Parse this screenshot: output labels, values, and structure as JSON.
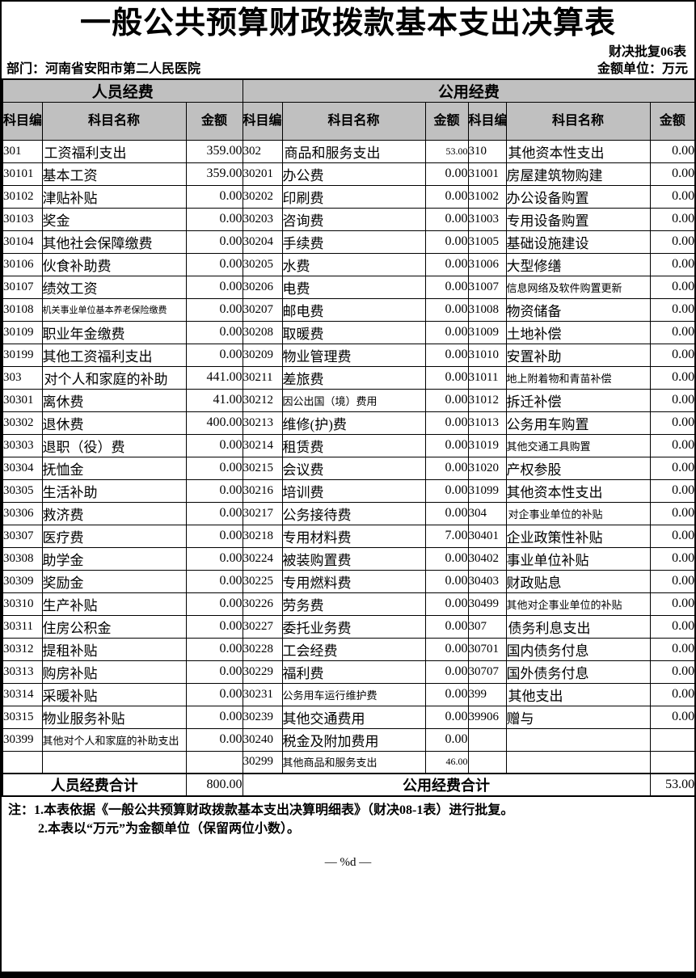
{
  "page": {
    "title": "一般公共预算财政拨款基本支出决算表",
    "form_code": "财决批复06表",
    "department": "部门：河南省安阳市第二人民医院",
    "unit": "金额单位：万元",
    "page_marker": "— %d —"
  },
  "table": {
    "group_headers": [
      "人员经费",
      "公用经费"
    ],
    "col_headers": {
      "code": "科目编码",
      "name": "科目名称",
      "amount": "金额"
    },
    "totals": {
      "personnel_label": "人员经费合计",
      "personnel_amount": "800.00",
      "public_label": "公用经费合计",
      "public_amount": "53.00"
    },
    "rows": [
      [
        {
          "code": "301",
          "name": "工资福利支出",
          "amount": "359.00",
          "top": true
        },
        {
          "code": "302",
          "name": "商品和服务支出",
          "amount": "53.00",
          "top": true,
          "asm": true
        },
        {
          "code": "310",
          "name": "其他资本性支出",
          "amount": "0.00",
          "top": true
        }
      ],
      [
        {
          "code": "30101",
          "name": "基本工资",
          "amount": "359.00"
        },
        {
          "code": "30201",
          "name": "办公费",
          "amount": "0.00"
        },
        {
          "code": "31001",
          "name": "房屋建筑物购建",
          "amount": "0.00"
        }
      ],
      [
        {
          "code": "30102",
          "name": "津贴补贴",
          "amount": "0.00"
        },
        {
          "code": "30202",
          "name": "印刷费",
          "amount": "0.00"
        },
        {
          "code": "31002",
          "name": "办公设备购置",
          "amount": "0.00"
        }
      ],
      [
        {
          "code": "30103",
          "name": "奖金",
          "amount": "0.00"
        },
        {
          "code": "30203",
          "name": "咨询费",
          "amount": "0.00"
        },
        {
          "code": "31003",
          "name": "专用设备购置",
          "amount": "0.00"
        }
      ],
      [
        {
          "code": "30104",
          "name": "其他社会保障缴费",
          "amount": "0.00"
        },
        {
          "code": "30204",
          "name": "手续费",
          "amount": "0.00"
        },
        {
          "code": "31005",
          "name": "基础设施建设",
          "amount": "0.00"
        }
      ],
      [
        {
          "code": "30106",
          "name": "伙食补助费",
          "amount": "0.00"
        },
        {
          "code": "30205",
          "name": "水费",
          "amount": "0.00"
        },
        {
          "code": "31006",
          "name": "大型修缮",
          "amount": "0.00"
        }
      ],
      [
        {
          "code": "30107",
          "name": "绩效工资",
          "amount": "0.00"
        },
        {
          "code": "30206",
          "name": "电费",
          "amount": "0.00"
        },
        {
          "code": "31007",
          "name": "信息网络及软件购置更新",
          "amount": "0.00",
          "sm": true
        }
      ],
      [
        {
          "code": "30108",
          "name": "机关事业单位基本养老保险缴费",
          "amount": "0.00",
          "xs": true
        },
        {
          "code": "30207",
          "name": "邮电费",
          "amount": "0.00"
        },
        {
          "code": "31008",
          "name": "物资储备",
          "amount": "0.00"
        }
      ],
      [
        {
          "code": "30109",
          "name": "职业年金缴费",
          "amount": "0.00"
        },
        {
          "code": "30208",
          "name": "取暖费",
          "amount": "0.00"
        },
        {
          "code": "31009",
          "name": "土地补偿",
          "amount": "0.00"
        }
      ],
      [
        {
          "code": "30199",
          "name": "其他工资福利支出",
          "amount": "0.00"
        },
        {
          "code": "30209",
          "name": "物业管理费",
          "amount": "0.00"
        },
        {
          "code": "31010",
          "name": "安置补助",
          "amount": "0.00"
        }
      ],
      [
        {
          "code": "303",
          "name": "对个人和家庭的补助",
          "amount": "441.00",
          "top": true
        },
        {
          "code": "30211",
          "name": "差旅费",
          "amount": "0.00"
        },
        {
          "code": "31011",
          "name": "地上附着物和青苗补偿",
          "amount": "0.00",
          "sm": true
        }
      ],
      [
        {
          "code": "30301",
          "name": "离休费",
          "amount": "41.00"
        },
        {
          "code": "30212",
          "name": "因公出国（境）费用",
          "amount": "0.00",
          "sm": true
        },
        {
          "code": "31012",
          "name": "拆迁补偿",
          "amount": "0.00"
        }
      ],
      [
        {
          "code": "30302",
          "name": "退休费",
          "amount": "400.00"
        },
        {
          "code": "30213",
          "name": "维修(护)费",
          "amount": "0.00"
        },
        {
          "code": "31013",
          "name": "公务用车购置",
          "amount": "0.00"
        }
      ],
      [
        {
          "code": "30303",
          "name": "退职（役）费",
          "amount": "0.00"
        },
        {
          "code": "30214",
          "name": "租赁费",
          "amount": "0.00"
        },
        {
          "code": "31019",
          "name": "其他交通工具购置",
          "amount": "0.00",
          "sm": true
        }
      ],
      [
        {
          "code": "30304",
          "name": "抚恤金",
          "amount": "0.00"
        },
        {
          "code": "30215",
          "name": "会议费",
          "amount": "0.00"
        },
        {
          "code": "31020",
          "name": "产权参股",
          "amount": "0.00"
        }
      ],
      [
        {
          "code": "30305",
          "name": "生活补助",
          "amount": "0.00"
        },
        {
          "code": "30216",
          "name": "培训费",
          "amount": "0.00"
        },
        {
          "code": "31099",
          "name": "其他资本性支出",
          "amount": "0.00"
        }
      ],
      [
        {
          "code": "30306",
          "name": "救济费",
          "amount": "0.00"
        },
        {
          "code": "30217",
          "name": "公务接待费",
          "amount": "0.00"
        },
        {
          "code": "304",
          "name": "对企事业单位的补贴",
          "amount": "0.00",
          "top": true,
          "sm": true
        }
      ],
      [
        {
          "code": "30307",
          "name": "医疗费",
          "amount": "0.00"
        },
        {
          "code": "30218",
          "name": "专用材料费",
          "amount": "7.00"
        },
        {
          "code": "30401",
          "name": "企业政策性补贴",
          "amount": "0.00"
        }
      ],
      [
        {
          "code": "30308",
          "name": "助学金",
          "amount": "0.00"
        },
        {
          "code": "30224",
          "name": "被装购置费",
          "amount": "0.00"
        },
        {
          "code": "30402",
          "name": "事业单位补贴",
          "amount": "0.00"
        }
      ],
      [
        {
          "code": "30309",
          "name": "奖励金",
          "amount": "0.00"
        },
        {
          "code": "30225",
          "name": "专用燃料费",
          "amount": "0.00"
        },
        {
          "code": "30403",
          "name": "财政贴息",
          "amount": "0.00"
        }
      ],
      [
        {
          "code": "30310",
          "name": "生产补贴",
          "amount": "0.00"
        },
        {
          "code": "30226",
          "name": "劳务费",
          "amount": "0.00"
        },
        {
          "code": "30499",
          "name": "其他对企事业单位的补贴",
          "amount": "0.00",
          "sm": true
        }
      ],
      [
        {
          "code": "30311",
          "name": "住房公积金",
          "amount": "0.00"
        },
        {
          "code": "30227",
          "name": "委托业务费",
          "amount": "0.00"
        },
        {
          "code": "307",
          "name": "债务利息支出",
          "amount": "0.00",
          "top": true
        }
      ],
      [
        {
          "code": "30312",
          "name": "提租补贴",
          "amount": "0.00"
        },
        {
          "code": "30228",
          "name": "工会经费",
          "amount": "0.00"
        },
        {
          "code": "30701",
          "name": "国内债务付息",
          "amount": "0.00"
        }
      ],
      [
        {
          "code": "30313",
          "name": "购房补贴",
          "amount": "0.00"
        },
        {
          "code": "30229",
          "name": "福利费",
          "amount": "0.00"
        },
        {
          "code": "30707",
          "name": "国外债务付息",
          "amount": "0.00"
        }
      ],
      [
        {
          "code": "30314",
          "name": "采暖补贴",
          "amount": "0.00"
        },
        {
          "code": "30231",
          "name": "公务用车运行维护费",
          "amount": "0.00",
          "sm": true
        },
        {
          "code": "399",
          "name": "其他支出",
          "amount": "0.00",
          "top": true
        }
      ],
      [
        {
          "code": "30315",
          "name": "物业服务补贴",
          "amount": "0.00"
        },
        {
          "code": "30239",
          "name": "其他交通费用",
          "amount": "0.00"
        },
        {
          "code": "39906",
          "name": "赠与",
          "amount": "0.00"
        }
      ],
      [
        {
          "code": "30399",
          "name": "其他对个人和家庭的补助支出",
          "amount": "0.00",
          "sm": true
        },
        {
          "code": "30240",
          "name": "税金及附加费用",
          "amount": "0.00"
        },
        null
      ],
      [
        null,
        {
          "code": "30299",
          "name": "其他商品和服务支出",
          "amount": "46.00",
          "sm": true,
          "asm": true
        },
        null
      ]
    ]
  },
  "notes": {
    "line1": "注：1.本表依据《一般公共预算财政拨款基本支出决算明细表》（财决08-1表）进行批复。",
    "line2": "2.本表以“万元”为金额单位（保留两位小数）。"
  }
}
